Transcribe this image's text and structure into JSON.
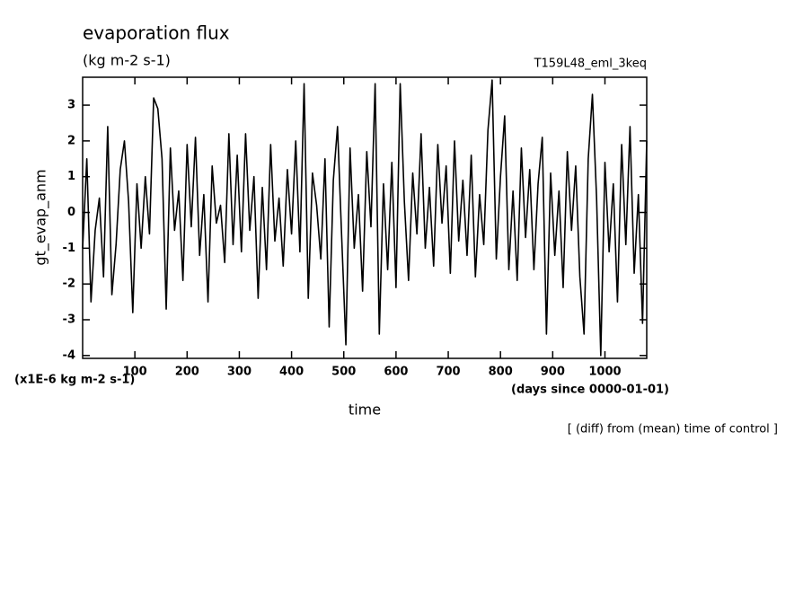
{
  "chart_data": {
    "type": "line",
    "title": "evaporation flux",
    "subtitle": "(kg m-2 s-1)",
    "run_label": "T159L48_eml_3keq",
    "ylabel": "gt_evap_anm",
    "xlabel": "time",
    "y_unit_note": "(x1E-6 kg m-2 s-1)",
    "x_unit_note": "(days since 0000-01-01)",
    "annotation": "[ (diff) from (mean) time of control ]",
    "color": "#000000",
    "xlim": [
      0,
      1080
    ],
    "ylim": [
      -4.08,
      3.78
    ],
    "xticks": [
      100,
      200,
      300,
      400,
      500,
      600,
      700,
      800,
      900,
      1000
    ],
    "yticks": [
      -4,
      -3,
      -2,
      -1,
      0,
      1,
      2,
      3
    ],
    "x": [
      0,
      8,
      16,
      24,
      32,
      40,
      48,
      56,
      64,
      72,
      80,
      88,
      96,
      104,
      112,
      120,
      128,
      136,
      144,
      152,
      160,
      168,
      176,
      184,
      192,
      200,
      208,
      216,
      224,
      232,
      240,
      248,
      256,
      264,
      272,
      280,
      288,
      296,
      304,
      312,
      320,
      328,
      336,
      344,
      352,
      360,
      368,
      376,
      384,
      392,
      400,
      408,
      416,
      424,
      432,
      440,
      448,
      456,
      464,
      472,
      480,
      488,
      496,
      504,
      512,
      520,
      528,
      536,
      544,
      552,
      560,
      568,
      576,
      584,
      592,
      600,
      608,
      616,
      624,
      632,
      640,
      648,
      656,
      664,
      672,
      680,
      688,
      696,
      704,
      712,
      720,
      728,
      736,
      744,
      752,
      760,
      768,
      776,
      784,
      792,
      800,
      808,
      816,
      824,
      832,
      840,
      848,
      856,
      864,
      872,
      880,
      888,
      896,
      904,
      912,
      920,
      928,
      936,
      944,
      952,
      960,
      968,
      976,
      984,
      992,
      1000,
      1008,
      1016,
      1024,
      1032,
      1040,
      1048,
      1056,
      1064,
      1072,
      1080
    ],
    "values": [
      -1.0,
      1.5,
      -2.5,
      -0.5,
      0.4,
      -1.8,
      2.4,
      -2.3,
      -0.9,
      1.2,
      2.0,
      0.3,
      -2.8,
      0.8,
      -1.0,
      1.0,
      -0.6,
      3.2,
      2.9,
      1.5,
      -2.7,
      1.8,
      -0.5,
      0.6,
      -1.9,
      1.9,
      -0.4,
      2.1,
      -1.2,
      0.5,
      -2.5,
      1.3,
      -0.3,
      0.2,
      -1.4,
      2.2,
      -0.9,
      1.6,
      -1.1,
      2.2,
      -0.5,
      1.0,
      -2.4,
      0.7,
      -1.6,
      1.9,
      -0.8,
      0.4,
      -1.5,
      1.2,
      -0.6,
      2.0,
      -1.1,
      3.6,
      -2.4,
      1.1,
      0.2,
      -1.3,
      1.5,
      -3.2,
      0.9,
      2.4,
      -0.7,
      -3.7,
      1.8,
      -1.0,
      0.5,
      -2.2,
      1.7,
      -0.4,
      3.6,
      -3.4,
      0.8,
      -1.6,
      1.4,
      -2.1,
      3.6,
      0.3,
      -1.9,
      1.1,
      -0.6,
      2.2,
      -1.0,
      0.7,
      -1.5,
      1.9,
      -0.3,
      1.3,
      -1.7,
      2.0,
      -0.8,
      0.9,
      -1.2,
      1.6,
      -1.8,
      0.5,
      -0.9,
      2.3,
      3.7,
      -1.3,
      1.0,
      2.7,
      -1.6,
      0.6,
      -1.9,
      1.8,
      -0.7,
      1.2,
      -1.6,
      0.8,
      2.1,
      -3.4,
      1.1,
      -1.2,
      0.6,
      -2.1,
      1.7,
      -0.5,
      1.3,
      -1.8,
      -3.4,
      1.5,
      3.3,
      0.4,
      -4.0,
      1.4,
      -1.1,
      0.8,
      -2.5,
      1.9,
      -0.9,
      2.4,
      -1.7,
      0.5,
      -3.1,
      2.0
    ]
  }
}
